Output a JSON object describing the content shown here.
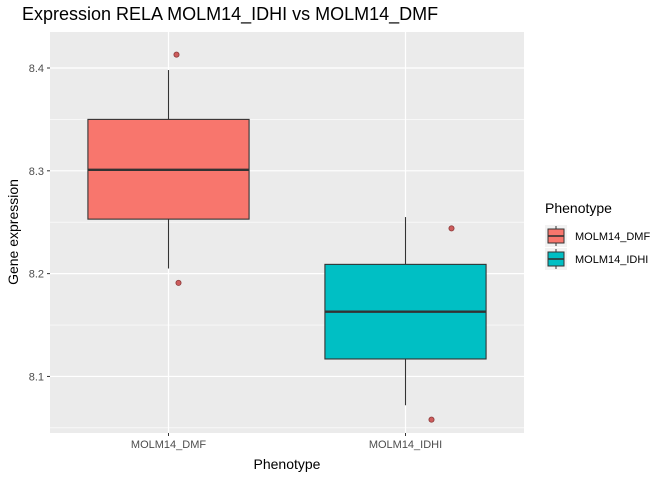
{
  "chart_data": {
    "type": "box",
    "title": "Expression RELA MOLM14_IDHI vs MOLM14_DMF",
    "xlabel": "Phenotype",
    "ylabel": "Gene expression",
    "categories": [
      "MOLM14_DMF",
      "MOLM14_IDHI"
    ],
    "ylim": [
      8.045,
      8.435
    ],
    "yticks": [
      8.1,
      8.2,
      8.3,
      8.4
    ],
    "ytick_labels": [
      "8.1",
      "8.2",
      "8.3",
      "8.4"
    ],
    "grid": true,
    "boxes": [
      {
        "category": "MOLM14_DMF",
        "whisker_low": 8.205,
        "q1": 8.253,
        "median": 8.301,
        "q3": 8.35,
        "whisker_high": 8.398,
        "color": "#F8766D"
      },
      {
        "category": "MOLM14_IDHI",
        "whisker_low": 8.072,
        "q1": 8.117,
        "median": 8.163,
        "q3": 8.209,
        "whisker_high": 8.255,
        "color": "#00BFC4"
      }
    ],
    "points": [
      {
        "category": "MOLM14_DMF",
        "y": 8.413
      },
      {
        "category": "MOLM14_DMF",
        "y": 8.191
      },
      {
        "category": "MOLM14_IDHI",
        "y": 8.244
      },
      {
        "category": "MOLM14_IDHI",
        "y": 8.058
      }
    ],
    "point_color": "#CD5C5C",
    "legend": {
      "title": "Phenotype",
      "position": "right",
      "entries": [
        {
          "label": "MOLM14_DMF",
          "color": "#F8766D"
        },
        {
          "label": "MOLM14_IDHI",
          "color": "#00BFC4"
        }
      ]
    }
  }
}
